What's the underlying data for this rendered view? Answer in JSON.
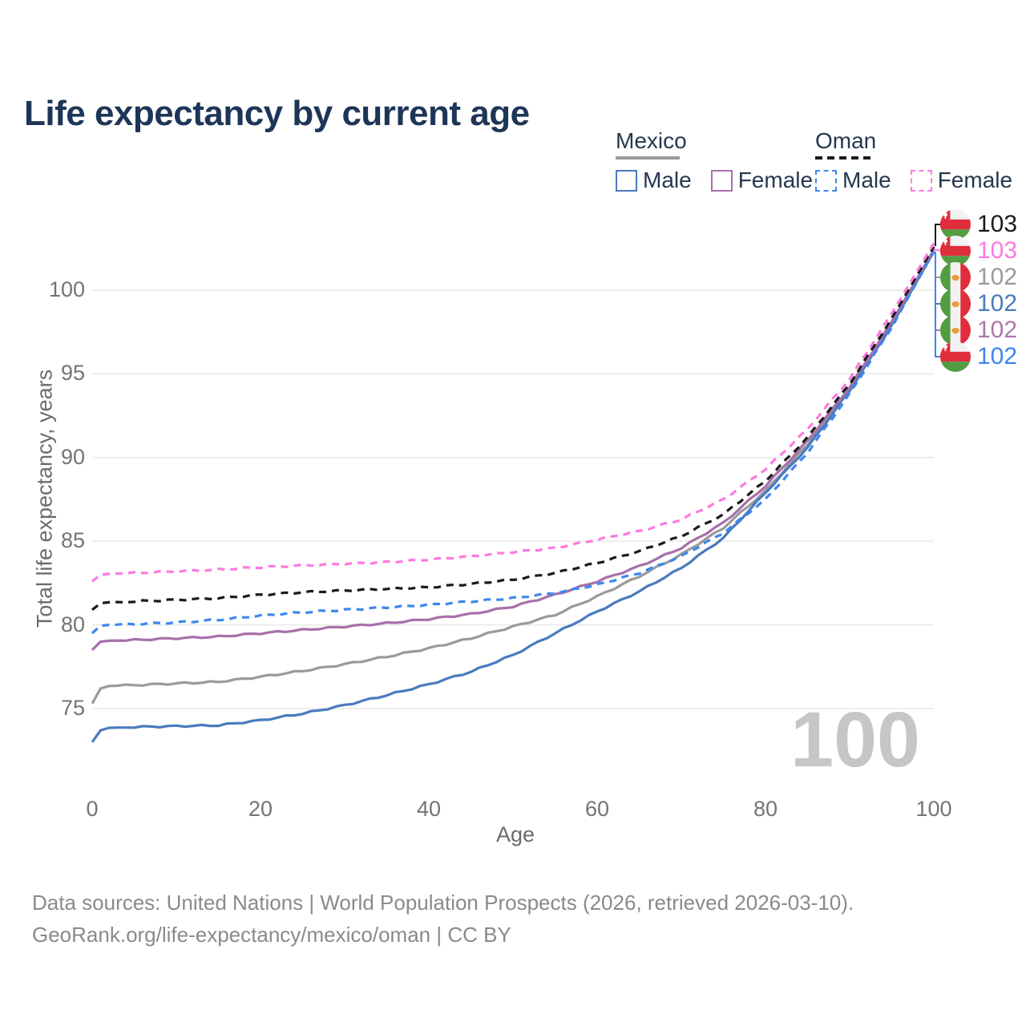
{
  "title": "Life expectancy by current age",
  "legend": {
    "groups": [
      {
        "label": "Mexico",
        "line_style": "solid",
        "line_color": "#9a9a9a",
        "items": [
          {
            "label": "Male",
            "color": "#4a7abf",
            "line_style": "solid"
          },
          {
            "label": "Female",
            "color": "#a770aa",
            "line_style": "solid"
          }
        ]
      },
      {
        "label": "Oman",
        "line_style": "dashed",
        "line_color": "#1a1a1a",
        "items": [
          {
            "label": "Male",
            "color": "#3d87ec",
            "line_style": "dashed"
          },
          {
            "label": "Female",
            "color": "#fb7ae1",
            "line_style": "dashed"
          }
        ]
      }
    ]
  },
  "watermark_age": "100",
  "footer": {
    "line1": "Data sources: United Nations | World Population Prospects (2026, retrieved 2026-03-10).",
    "line2": "GeoRank.org/life-expectancy/mexico/oman | CC BY"
  },
  "chart_data": {
    "type": "line",
    "title": "Life expectancy by current age",
    "xlabel": "Age",
    "ylabel": "Total life expectancy, years",
    "xlim": [
      0,
      100
    ],
    "ylim": [
      72,
      104
    ],
    "x_ticks": [
      0,
      20,
      40,
      60,
      80,
      100
    ],
    "y_ticks": [
      75,
      80,
      85,
      90,
      95,
      100
    ],
    "grid": "horizontal-only",
    "legend_position": "top-right",
    "ages": [
      0,
      1,
      2,
      5,
      10,
      15,
      20,
      25,
      30,
      35,
      40,
      45,
      50,
      55,
      60,
      65,
      70,
      75,
      80,
      85,
      90,
      95,
      100
    ],
    "series": [
      {
        "name": "Mexico",
        "country": "mexico",
        "sex": "both",
        "color": "#9a9a9a",
        "dash": "solid",
        "values": [
          75.3,
          76.2,
          76.35,
          76.4,
          76.5,
          76.6,
          76.9,
          77.25,
          77.65,
          78.1,
          78.6,
          79.2,
          79.9,
          80.6,
          81.7,
          82.9,
          84.2,
          85.8,
          88.0,
          90.8,
          94.1,
          98.0,
          102.4
        ],
        "end_value": 102
      },
      {
        "name": "Mexico Male",
        "country": "mexico",
        "sex": "male",
        "color": "#4a7abf",
        "dash": "solid",
        "values": [
          73.0,
          73.7,
          73.85,
          73.9,
          73.95,
          74.0,
          74.3,
          74.7,
          75.2,
          75.8,
          76.45,
          77.2,
          78.2,
          79.5,
          80.8,
          82.0,
          83.4,
          85.2,
          87.9,
          90.6,
          94.0,
          97.9,
          102.3
        ],
        "end_value": 102
      },
      {
        "name": "Mexico Female",
        "country": "mexico",
        "sex": "female",
        "color": "#a770aa",
        "dash": "solid",
        "values": [
          78.5,
          79.0,
          79.05,
          79.1,
          79.2,
          79.3,
          79.5,
          79.7,
          79.9,
          80.1,
          80.35,
          80.65,
          81.1,
          81.8,
          82.6,
          83.5,
          84.6,
          86.1,
          88.3,
          91.0,
          94.2,
          98.1,
          102.4
        ],
        "end_value": 102
      },
      {
        "name": "Oman Male",
        "country": "oman",
        "sex": "male",
        "color": "#3d87ec",
        "dash": "dashed",
        "values": [
          79.5,
          79.95,
          80.0,
          80.05,
          80.15,
          80.3,
          80.55,
          80.75,
          80.9,
          81.05,
          81.2,
          81.4,
          81.6,
          81.9,
          82.4,
          83.1,
          84.1,
          85.5,
          87.5,
          90.3,
          93.8,
          97.8,
          102.3
        ],
        "end_value": 102
      },
      {
        "name": "Oman",
        "country": "oman",
        "sex": "both",
        "color": "#1a1a1a",
        "dash": "dashed",
        "values": [
          80.9,
          81.3,
          81.35,
          81.4,
          81.5,
          81.6,
          81.8,
          81.95,
          82.05,
          82.15,
          82.25,
          82.45,
          82.7,
          83.1,
          83.7,
          84.4,
          85.3,
          86.6,
          88.6,
          91.2,
          94.4,
          98.3,
          102.6
        ],
        "end_value": 103
      },
      {
        "name": "Oman Female",
        "country": "oman",
        "sex": "female",
        "color": "#fb7ae1",
        "dash": "dashed",
        "values": [
          82.6,
          83.0,
          83.05,
          83.1,
          83.2,
          83.3,
          83.45,
          83.55,
          83.65,
          83.75,
          83.9,
          84.1,
          84.35,
          84.6,
          85.1,
          85.6,
          86.3,
          87.5,
          89.3,
          91.7,
          94.7,
          98.6,
          102.8
        ],
        "end_value": 103
      }
    ]
  },
  "end_labels": [
    {
      "flag": "oman",
      "series": "Oman",
      "value": "103",
      "color": "#1a1a1a"
    },
    {
      "flag": "oman",
      "series": "Oman Female",
      "value": "103",
      "color": "#fb7ae1"
    },
    {
      "flag": "mexico",
      "series": "Mexico",
      "value": "102",
      "color": "#9b9b9b"
    },
    {
      "flag": "mexico",
      "series": "Mexico Male",
      "value": "102",
      "color": "#4a7abf"
    },
    {
      "flag": "mexico",
      "series": "Mexico Female",
      "value": "102",
      "color": "#ab77ad"
    },
    {
      "flag": "oman",
      "series": "Oman Male",
      "value": "102",
      "color": "#3d87ec"
    }
  ]
}
